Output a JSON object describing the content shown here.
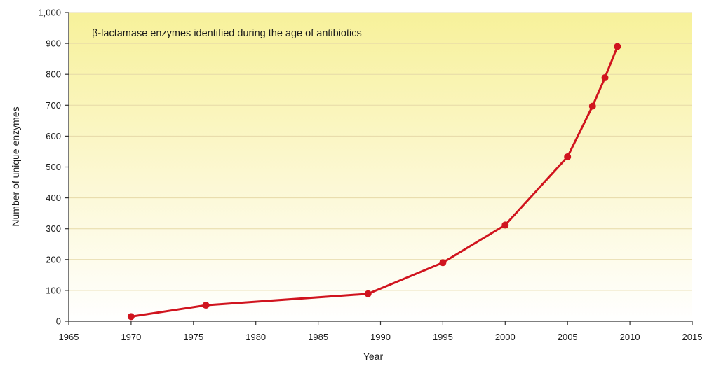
{
  "chart_data": {
    "type": "line",
    "title": "β-lactamase enzymes identified during the age of antibiotics",
    "xlabel": "Year",
    "ylabel": "Number of unique enzymes",
    "xlim": [
      1965,
      2015
    ],
    "ylim": [
      0,
      1000
    ],
    "x_ticks": [
      1965,
      1970,
      1975,
      1980,
      1985,
      1990,
      1995,
      2000,
      2005,
      2010,
      2015
    ],
    "x_tick_labels": [
      "1965",
      "1970",
      "1975",
      "1980",
      "1985",
      "1990",
      "1995",
      "2000",
      "2005",
      "2010",
      "2015"
    ],
    "y_ticks": [
      0,
      100,
      200,
      300,
      400,
      500,
      600,
      700,
      800,
      900,
      1000
    ],
    "y_tick_labels": [
      "0",
      "100",
      "200",
      "300",
      "400",
      "500",
      "600",
      "700",
      "800",
      "900",
      "1,000"
    ],
    "grid": "horizontal",
    "background": "yellow gradient (top) to white (bottom)",
    "series": [
      {
        "color": "#d0141e",
        "x": [
          1970,
          1976,
          1989,
          1995,
          2000,
          2005,
          2007,
          2008,
          2009
        ],
        "y": [
          15,
          52,
          89,
          190,
          312,
          533,
          697,
          789,
          890
        ]
      }
    ]
  }
}
